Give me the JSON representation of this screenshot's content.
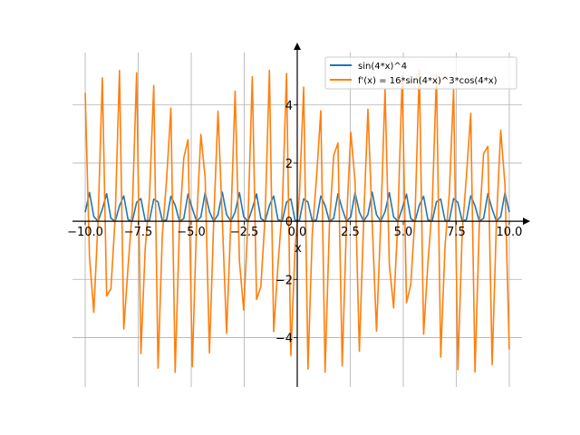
{
  "chart_data": {
    "type": "line",
    "title": "",
    "xlabel": "x",
    "ylabel": "",
    "xlim": [
      -10.6,
      10.6
    ],
    "ylim": [
      -5.7,
      5.8
    ],
    "grid": true,
    "legend_position": "top-right",
    "x_ticks": [
      -10.0,
      -7.5,
      -5.0,
      -2.5,
      0.0,
      2.5,
      5.0,
      7.5,
      10.0
    ],
    "x_tick_labels": [
      "−10.0",
      "−7.5",
      "−5.0",
      "−2.5",
      "0.0",
      "2.5",
      "5.0",
      "7.5",
      "10.0"
    ],
    "y_ticks": [
      -4,
      -2,
      0,
      2,
      4
    ],
    "y_tick_labels": [
      "−4",
      "−2",
      "0",
      "2",
      "4"
    ],
    "x_range": [
      -10,
      10
    ],
    "sample_count": 100,
    "series": [
      {
        "name": "sin(4*x)^4",
        "color": "#1f77b4",
        "expression": "sin(4*x)^4"
      },
      {
        "name": "f'(x) = 16*sin(4*x)^3*cos(4*x)",
        "color": "#ff7f0e",
        "expression": "16*sin(4*x)^3*cos(4*x)"
      }
    ]
  }
}
